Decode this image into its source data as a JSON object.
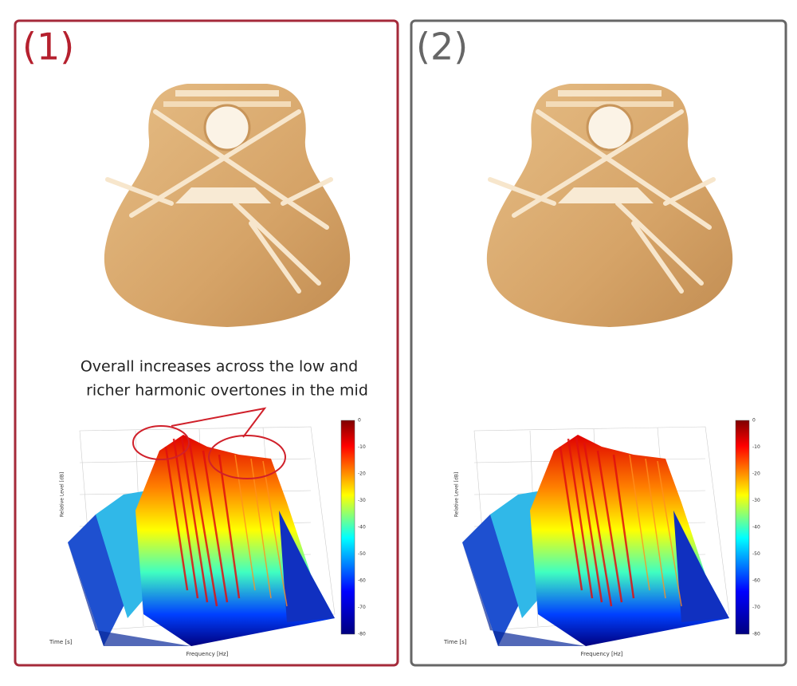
{
  "panels": [
    {
      "label": "(1)",
      "annotation": [
        "Overall increases across the low and",
        "richer harmonic overtones in the mid"
      ]
    },
    {
      "label": "(2)"
    }
  ],
  "plot": {
    "y_axis_label": "Relative Level [dB]",
    "x_axis_label": "Frequency [Hz]",
    "time_label": "Time [s]",
    "colorbar_ticks": [
      0,
      -10,
      -20,
      -30,
      -40,
      -50,
      -60,
      -70,
      -80
    ]
  }
}
